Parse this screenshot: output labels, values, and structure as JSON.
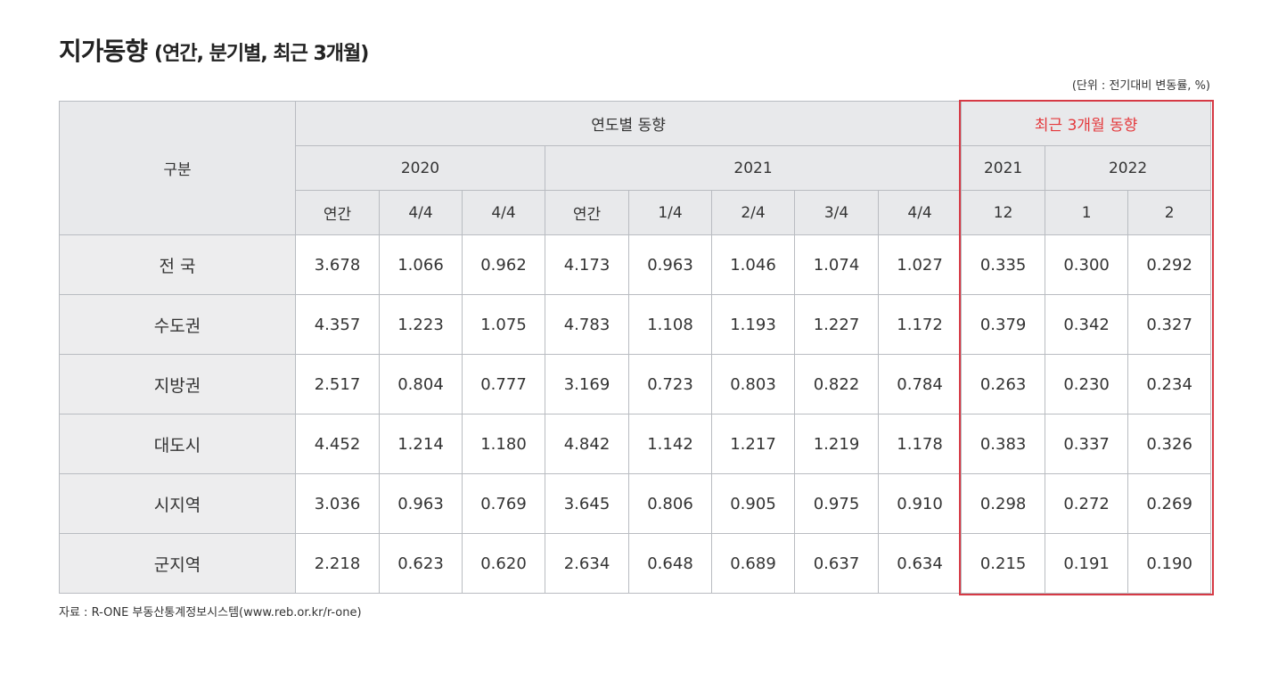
{
  "title": {
    "main": "지가동향",
    "sub": "(연간, 분기별, 최근 3개월)"
  },
  "unit_note": "(단위 : 전기대비 변동률, %)",
  "headers": {
    "category": "구분",
    "yearly_group": "연도별 동향",
    "recent_group": "최근 3개월 동향",
    "years": [
      "2020",
      "2021",
      "2021",
      "2022"
    ],
    "subcolumns": [
      "연간",
      "4/4",
      "4/4",
      "연간",
      "1/4",
      "2/4",
      "3/4",
      "4/4",
      "12",
      "1",
      "2"
    ]
  },
  "rows": [
    {
      "label": "전 국",
      "values": [
        "3.678",
        "1.066",
        "0.962",
        "4.173",
        "0.963",
        "1.046",
        "1.074",
        "1.027",
        "0.335",
        "0.300",
        "0.292"
      ]
    },
    {
      "label": "수도권",
      "values": [
        "4.357",
        "1.223",
        "1.075",
        "4.783",
        "1.108",
        "1.193",
        "1.227",
        "1.172",
        "0.379",
        "0.342",
        "0.327"
      ]
    },
    {
      "label": "지방권",
      "values": [
        "2.517",
        "0.804",
        "0.777",
        "3.169",
        "0.723",
        "0.803",
        "0.822",
        "0.784",
        "0.263",
        "0.230",
        "0.234"
      ]
    },
    {
      "label": "대도시",
      "values": [
        "4.452",
        "1.214",
        "1.180",
        "4.842",
        "1.142",
        "1.217",
        "1.219",
        "1.178",
        "0.383",
        "0.337",
        "0.326"
      ]
    },
    {
      "label": "시지역",
      "values": [
        "3.036",
        "0.963",
        "0.769",
        "3.645",
        "0.806",
        "0.905",
        "0.975",
        "0.910",
        "0.298",
        "0.272",
        "0.269"
      ]
    },
    {
      "label": "군지역",
      "values": [
        "2.218",
        "0.623",
        "0.620",
        "2.634",
        "0.648",
        "0.689",
        "0.637",
        "0.634",
        "0.215",
        "0.191",
        "0.190"
      ]
    }
  ],
  "source": "자료 : R-ONE 부동산통계정보시스템(www.reb.or.kr/r-one)",
  "colors": {
    "highlight_border": "#d63a45",
    "recent_header_text": "#e4393c",
    "header_bg": "#e8e9eb"
  }
}
